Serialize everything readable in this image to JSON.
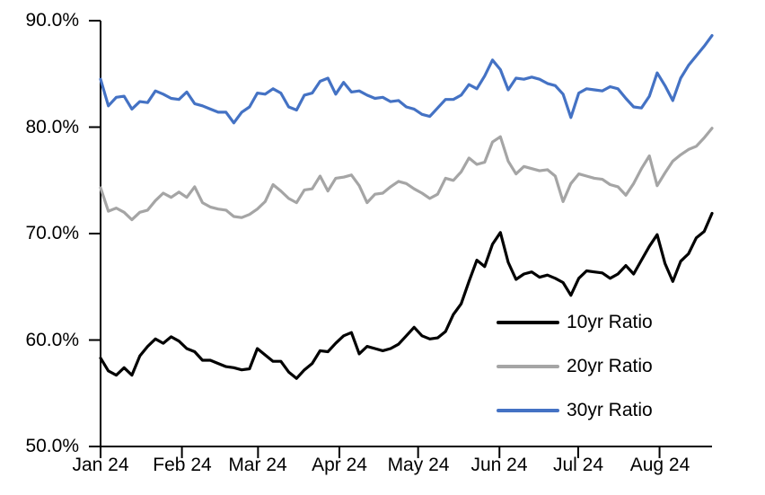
{
  "chart_data": {
    "type": "line",
    "title": "",
    "xlabel": "",
    "ylabel": "",
    "grid": "off",
    "legend_position": "inside-lower-right",
    "x_axis": {
      "categories": [
        "Jan 24",
        "Feb 24",
        "Mar 24",
        "Apr 24",
        "May 24",
        "Jun 24",
        "Jul 24",
        "Aug 24"
      ],
      "tick_day_offsets": [
        0,
        31,
        60,
        91,
        121,
        152,
        182,
        213
      ],
      "total_days": 233
    },
    "y_axis": {
      "min": 50,
      "max": 90,
      "tick_values": [
        90,
        80,
        70,
        60,
        50
      ],
      "tick_labels": [
        "90.0%",
        "80.0%",
        "70.0%",
        "60.0%",
        "50.0%"
      ],
      "format": "percent_one_decimal"
    },
    "series": [
      {
        "name": "10yr Ratio",
        "color": "#000000",
        "values": [
          58.3,
          57.1,
          56.7,
          57.4,
          56.7,
          58.5,
          59.4,
          60.1,
          59.7,
          60.3,
          59.9,
          59.2,
          58.9,
          58.1,
          58.1,
          57.8,
          57.5,
          57.4,
          57.2,
          57.3,
          59.2,
          58.6,
          58.0,
          58.0,
          57.0,
          56.4,
          57.2,
          57.8,
          59.0,
          58.9,
          59.7,
          60.4,
          60.7,
          58.7,
          59.4,
          59.2,
          59.0,
          59.2,
          59.6,
          60.4,
          61.2,
          60.4,
          60.1,
          60.2,
          60.8,
          62.4,
          63.4,
          65.5,
          67.5,
          66.9,
          69.0,
          70.1,
          67.3,
          65.7,
          66.2,
          66.4,
          65.9,
          66.1,
          65.8,
          65.4,
          64.2,
          65.8,
          66.5,
          66.4,
          66.3,
          65.8,
          66.2,
          67.0,
          66.2,
          67.5,
          68.8,
          69.9,
          67.2,
          65.5,
          67.4,
          68.1,
          69.6,
          70.2,
          71.9
        ]
      },
      {
        "name": "20yr Ratio",
        "color": "#A5A5A5",
        "values": [
          74.3,
          72.1,
          72.4,
          72.0,
          71.3,
          72.0,
          72.2,
          73.1,
          73.8,
          73.4,
          73.9,
          73.4,
          74.4,
          72.9,
          72.5,
          72.3,
          72.2,
          71.6,
          71.5,
          71.8,
          72.3,
          73.0,
          74.6,
          74.0,
          73.3,
          72.9,
          74.1,
          74.2,
          75.4,
          74.0,
          75.2,
          75.3,
          75.5,
          74.5,
          72.9,
          73.7,
          73.8,
          74.4,
          74.9,
          74.7,
          74.2,
          73.8,
          73.3,
          73.7,
          75.2,
          75.0,
          75.8,
          77.1,
          76.5,
          76.7,
          78.6,
          79.1,
          76.8,
          75.6,
          76.3,
          76.1,
          75.9,
          76.0,
          75.4,
          73.0,
          74.7,
          75.6,
          75.4,
          75.2,
          75.1,
          74.6,
          74.4,
          73.6,
          74.7,
          76.1,
          77.3,
          74.5,
          75.7,
          76.8,
          77.4,
          77.9,
          78.2,
          79.0,
          79.9
        ]
      },
      {
        "name": "30yr Ratio",
        "color": "#4472C4",
        "values": [
          84.5,
          82.0,
          82.8,
          82.9,
          81.7,
          82.4,
          82.3,
          83.4,
          83.1,
          82.7,
          82.6,
          83.3,
          82.2,
          82.0,
          81.7,
          81.4,
          81.4,
          80.4,
          81.4,
          81.9,
          83.2,
          83.1,
          83.6,
          83.2,
          81.9,
          81.6,
          83.0,
          83.2,
          84.3,
          84.6,
          83.1,
          84.2,
          83.3,
          83.4,
          83.0,
          82.7,
          82.8,
          82.4,
          82.5,
          81.9,
          81.7,
          81.2,
          81.0,
          81.8,
          82.6,
          82.6,
          83.0,
          84.0,
          83.6,
          84.8,
          86.3,
          85.4,
          83.5,
          84.6,
          84.5,
          84.7,
          84.5,
          84.1,
          83.9,
          83.1,
          80.9,
          83.2,
          83.6,
          83.5,
          83.4,
          83.8,
          83.6,
          82.7,
          81.9,
          81.8,
          82.9,
          85.1,
          83.9,
          82.5,
          84.6,
          85.8,
          86.7,
          87.6,
          88.6
        ]
      }
    ]
  }
}
